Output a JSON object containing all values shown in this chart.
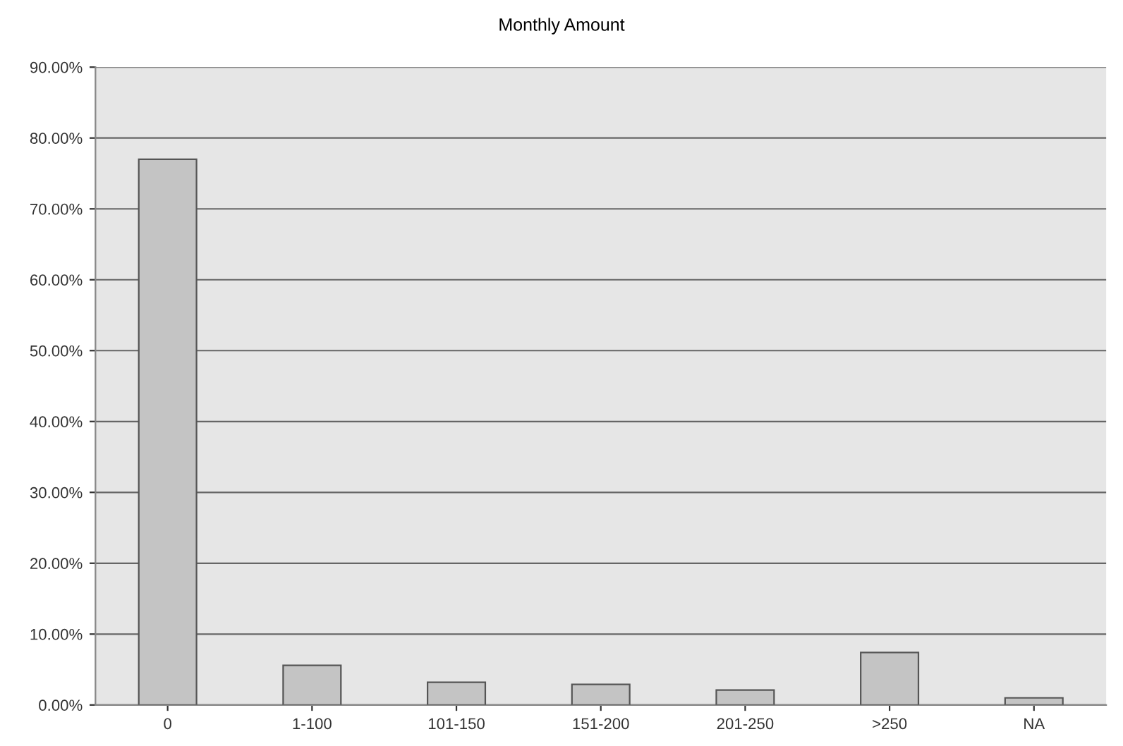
{
  "chart_data": {
    "type": "bar",
    "title": "Monthly Amount",
    "categories": [
      "0",
      "1-100",
      "101-150",
      "151-200",
      "201-250",
      ">250",
      "NA"
    ],
    "values": [
      77.0,
      5.6,
      3.2,
      2.9,
      2.1,
      7.4,
      1.0
    ],
    "color": "#c4c4c4",
    "ylim": [
      0,
      90
    ],
    "yticks": [
      {
        "value": 0,
        "label": "0.00%"
      },
      {
        "value": 10,
        "label": "10.00%"
      },
      {
        "value": 20,
        "label": "20.00%"
      },
      {
        "value": 30,
        "label": "30.00%"
      },
      {
        "value": 40,
        "label": "40.00%"
      },
      {
        "value": 50,
        "label": "50.00%"
      },
      {
        "value": 60,
        "label": "60.00%"
      },
      {
        "value": 70,
        "label": "70.00%"
      },
      {
        "value": 80,
        "label": "80.00%"
      },
      {
        "value": 90,
        "label": "90.00%"
      }
    ],
    "grid": "y"
  }
}
